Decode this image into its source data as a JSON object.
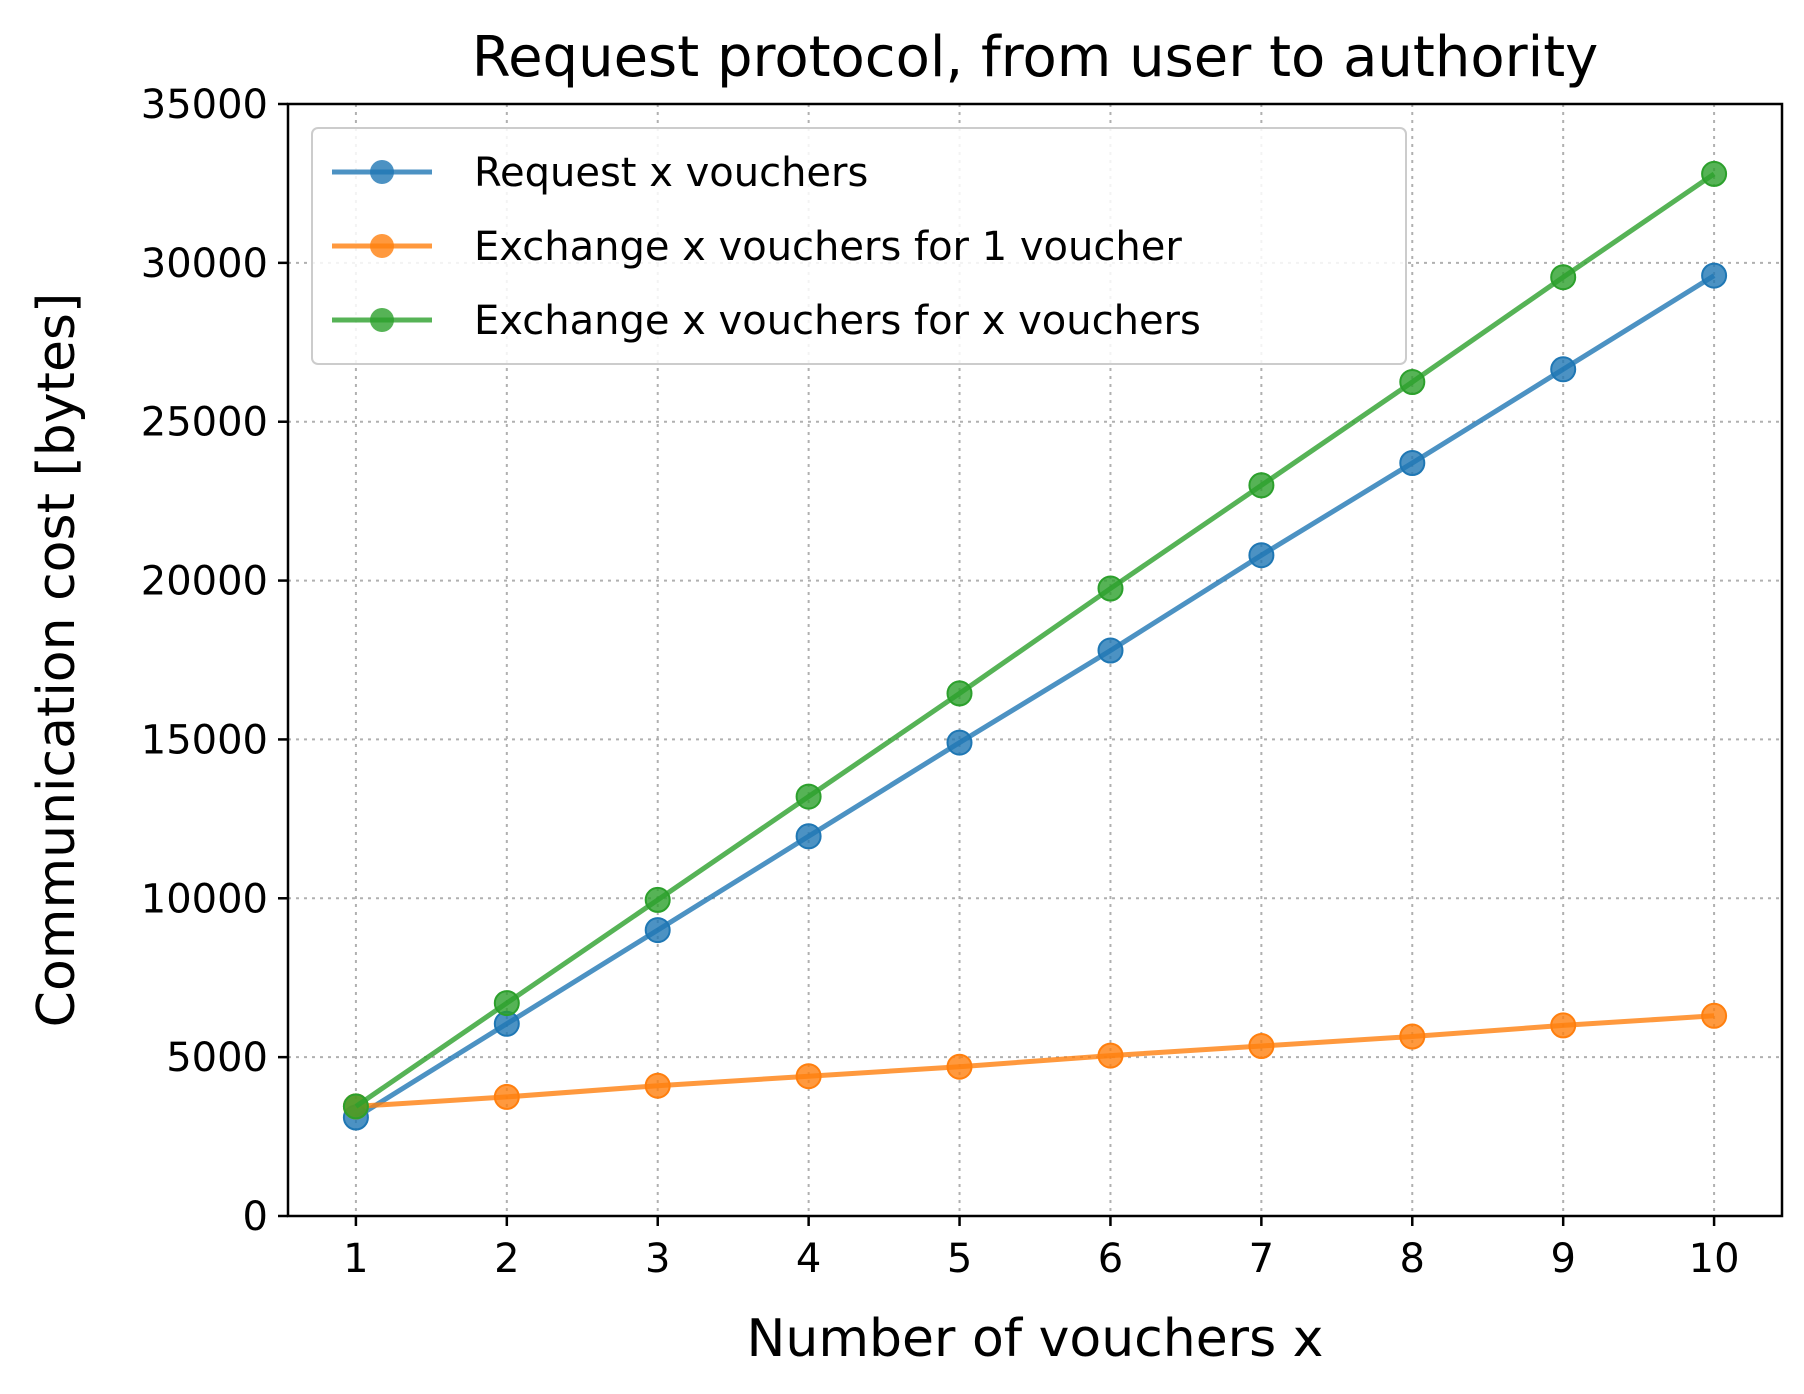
{
  "chart_data": {
    "type": "line",
    "title": "Request protocol, from user to authority",
    "xlabel": "Number of vouchers x",
    "ylabel": "Communication cost [bytes]",
    "x": [
      1,
      2,
      3,
      4,
      5,
      6,
      7,
      8,
      9,
      10
    ],
    "xticks": [
      1,
      2,
      3,
      4,
      5,
      6,
      7,
      8,
      9,
      10
    ],
    "xlim": [
      0.55,
      10.45
    ],
    "ylim": [
      0,
      35000
    ],
    "yticks": [
      0,
      5000,
      10000,
      15000,
      20000,
      25000,
      30000,
      35000
    ],
    "grid": true,
    "legend": "top-left",
    "series": [
      {
        "name": "Request x vouchers",
        "color": "#1f77b4",
        "values": [
          3100,
          6050,
          9000,
          11950,
          14900,
          17800,
          20800,
          23700,
          26650,
          29600
        ]
      },
      {
        "name": "Exchange x vouchers for 1 voucher",
        "color": "#ff7f0e",
        "values": [
          3450,
          3750,
          4100,
          4400,
          4700,
          5050,
          5350,
          5650,
          6000,
          6300
        ]
      },
      {
        "name": "Exchange x vouchers for x vouchers",
        "color": "#2ca02c",
        "values": [
          3450,
          6700,
          9950,
          13200,
          16450,
          19750,
          23000,
          26250,
          29550,
          32800
        ]
      }
    ]
  }
}
